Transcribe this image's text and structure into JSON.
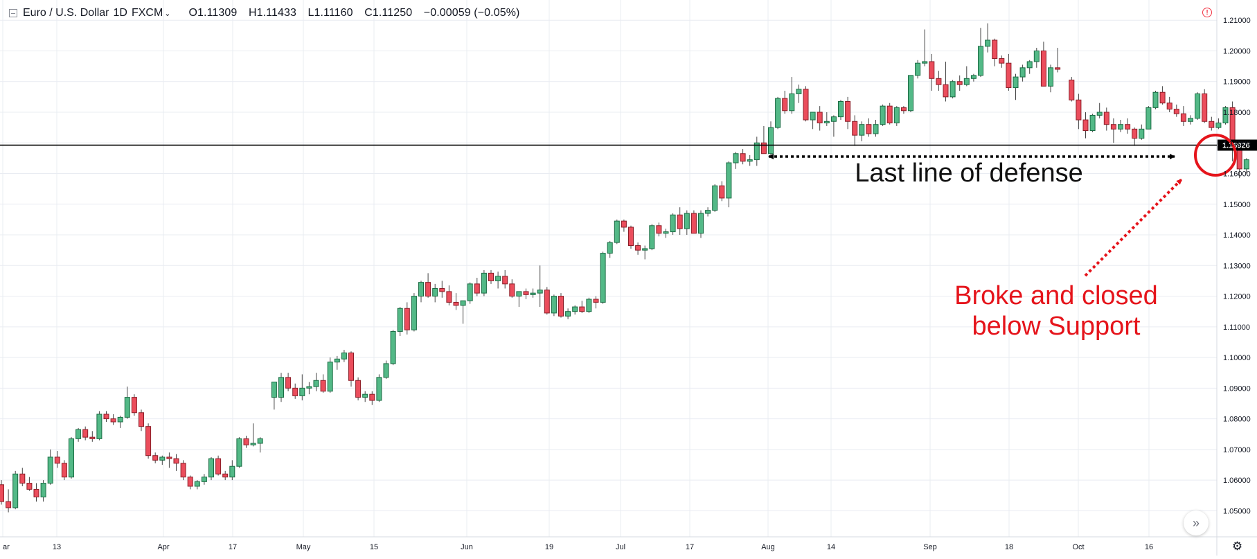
{
  "header": {
    "symbol": "Euro / U.S. Dollar",
    "interval": "1D",
    "exchange": "FXCM",
    "open": "O1.11309",
    "high": "H1.11433",
    "low": "L1.11160",
    "close": "C1.11250",
    "change": "−0.00059 (−0.05%)"
  },
  "colors": {
    "up": "#53b987",
    "up_border": "#1a6b43",
    "down": "#eb4d5c",
    "down_border": "#8b1d27",
    "grid": "#e9ecf2",
    "annotation_red": "#e5141b",
    "support_line": "#000000"
  },
  "chart_data": {
    "type": "candlestick",
    "title": "",
    "y_axis": {
      "ticks": [
        "1.21000",
        "1.20000",
        "1.19000",
        "1.18000",
        "1.17000",
        "1.16000",
        "1.15000",
        "1.14000",
        "1.13000",
        "1.12000",
        "1.11000",
        "1.10000",
        "1.09000",
        "1.08000",
        "1.07000",
        "1.06000",
        "1.05000"
      ],
      "range": [
        1.0415,
        1.2166
      ]
    },
    "x_axis": {
      "ticks": [
        "ar",
        "13",
        "Apr",
        "17",
        "May",
        "15",
        "Jun",
        "19",
        "Jul",
        "17",
        "Aug",
        "14",
        "Sep",
        "18",
        "Oct",
        "16"
      ]
    },
    "support_level": 1.16926,
    "support_label": "1.16926",
    "candles": [
      [
        1.0585,
        1.06,
        1.052,
        1.053
      ],
      [
        1.053,
        1.057,
        1.0495,
        1.051
      ],
      [
        1.051,
        1.063,
        1.0505,
        1.062
      ],
      [
        1.062,
        1.064,
        1.058,
        1.059
      ],
      [
        1.059,
        1.061,
        1.0565,
        1.057
      ],
      [
        1.057,
        1.059,
        1.053,
        1.0545
      ],
      [
        1.0545,
        1.06,
        1.053,
        1.059
      ],
      [
        1.059,
        1.07,
        1.0585,
        1.0675
      ],
      [
        1.0675,
        1.0695,
        1.064,
        1.0655
      ],
      [
        1.0655,
        1.0665,
        1.06,
        1.061
      ],
      [
        1.061,
        1.074,
        1.0605,
        1.0735
      ],
      [
        1.0735,
        1.077,
        1.0725,
        1.0765
      ],
      [
        1.0765,
        1.0775,
        1.073,
        1.074
      ],
      [
        1.074,
        1.076,
        1.0725,
        1.0735
      ],
      [
        1.0735,
        1.0825,
        1.073,
        1.0815
      ],
      [
        1.0815,
        1.0825,
        1.079,
        1.08
      ],
      [
        1.08,
        1.0815,
        1.078,
        1.079
      ],
      [
        1.079,
        1.081,
        1.077,
        1.0805
      ],
      [
        1.0805,
        1.0905,
        1.08,
        1.087
      ],
      [
        1.087,
        1.088,
        1.081,
        1.082
      ],
      [
        1.082,
        1.083,
        1.076,
        1.0775
      ],
      [
        1.0775,
        1.0785,
        1.067,
        1.068
      ],
      [
        1.068,
        1.069,
        1.0655,
        1.0665
      ],
      [
        1.0665,
        1.068,
        1.065,
        1.0675
      ],
      [
        1.0675,
        1.069,
        1.064,
        1.067
      ],
      [
        1.067,
        1.0685,
        1.063,
        1.0655
      ],
      [
        1.0655,
        1.0665,
        1.06,
        1.061
      ],
      [
        1.061,
        1.0615,
        1.057,
        1.058
      ],
      [
        1.058,
        1.06,
        1.057,
        1.0595
      ],
      [
        1.0595,
        1.062,
        1.0585,
        1.061
      ],
      [
        1.061,
        1.0675,
        1.06,
        1.067
      ],
      [
        1.067,
        1.068,
        1.0615,
        1.062
      ],
      [
        1.062,
        1.063,
        1.06,
        1.061
      ],
      [
        1.061,
        1.0665,
        1.06,
        1.0645
      ],
      [
        1.0645,
        1.074,
        1.064,
        1.0735
      ],
      [
        1.0735,
        1.0745,
        1.0705,
        1.0715
      ],
      [
        1.0715,
        1.0785,
        1.071,
        1.072
      ],
      [
        1.072,
        1.074,
        1.069,
        1.0735
      ],
      null,
      [
        1.087,
        1.0905,
        1.083,
        1.092
      ],
      [
        1.087,
        1.095,
        1.0855,
        1.0935
      ],
      [
        1.0935,
        1.095,
        1.089,
        1.09
      ],
      [
        1.09,
        1.0915,
        1.0865,
        1.0875
      ],
      [
        1.0875,
        1.0945,
        1.086,
        1.09
      ],
      [
        1.09,
        1.092,
        1.088,
        1.0905
      ],
      [
        1.0905,
        1.095,
        1.089,
        1.0925
      ],
      [
        1.0925,
        1.0945,
        1.0885,
        1.089
      ],
      [
        1.089,
        1.1,
        1.0885,
        1.0985
      ],
      [
        1.0985,
        1.1005,
        1.096,
        1.0995
      ],
      [
        1.0995,
        1.1025,
        1.0985,
        1.1015
      ],
      [
        1.1015,
        1.102,
        1.0905,
        1.0925
      ],
      [
        1.0925,
        1.0935,
        1.086,
        1.087
      ],
      [
        1.087,
        1.089,
        1.0855,
        1.088
      ],
      [
        1.088,
        1.089,
        1.0845,
        1.086
      ],
      [
        1.086,
        1.0945,
        1.0855,
        1.0935
      ],
      [
        1.0935,
        1.099,
        1.093,
        1.098
      ],
      [
        1.098,
        1.109,
        1.0975,
        1.1085
      ],
      [
        1.1085,
        1.1165,
        1.107,
        1.116
      ],
      [
        1.116,
        1.118,
        1.1075,
        1.109
      ],
      [
        1.109,
        1.121,
        1.1085,
        1.12
      ],
      [
        1.12,
        1.125,
        1.118,
        1.1245
      ],
      [
        1.1245,
        1.1275,
        1.1195,
        1.12
      ],
      [
        1.12,
        1.124,
        1.118,
        1.1225
      ],
      [
        1.1225,
        1.125,
        1.1195,
        1.1215
      ],
      [
        1.1215,
        1.1235,
        1.117,
        1.118
      ],
      [
        1.118,
        1.121,
        1.1155,
        1.117
      ],
      [
        1.117,
        1.1185,
        1.111,
        1.1185
      ],
      [
        1.1185,
        1.1245,
        1.1175,
        1.124
      ],
      [
        1.124,
        1.126,
        1.12,
        1.121
      ],
      [
        1.121,
        1.1285,
        1.12,
        1.1275
      ],
      [
        1.1275,
        1.1285,
        1.124,
        1.125
      ],
      [
        1.125,
        1.128,
        1.1225,
        1.1265
      ],
      [
        1.1265,
        1.1285,
        1.1225,
        1.124
      ],
      [
        1.124,
        1.1255,
        1.1195,
        1.12
      ],
      [
        1.12,
        1.1215,
        1.1165,
        1.1215
      ],
      [
        1.1215,
        1.1225,
        1.119,
        1.1205
      ],
      [
        1.1205,
        1.1225,
        1.1195,
        1.121
      ],
      [
        1.121,
        1.13,
        1.1165,
        1.122
      ],
      [
        1.122,
        1.123,
        1.114,
        1.1145
      ],
      [
        1.1145,
        1.1205,
        1.1135,
        1.12
      ],
      [
        1.12,
        1.121,
        1.113,
        1.1135
      ],
      [
        1.1135,
        1.116,
        1.1125,
        1.115
      ],
      [
        1.115,
        1.117,
        1.114,
        1.1165
      ],
      [
        1.1165,
        1.1185,
        1.1145,
        1.115
      ],
      [
        1.115,
        1.1195,
        1.1145,
        1.119
      ],
      [
        1.119,
        1.12,
        1.116,
        1.118
      ],
      [
        1.118,
        1.1345,
        1.1175,
        1.134
      ],
      [
        1.134,
        1.138,
        1.1325,
        1.1375
      ],
      [
        1.1375,
        1.145,
        1.137,
        1.1445
      ],
      [
        1.1445,
        1.145,
        1.141,
        1.1425
      ],
      [
        1.1425,
        1.143,
        1.1355,
        1.1365
      ],
      [
        1.1365,
        1.1375,
        1.1335,
        1.135
      ],
      [
        1.135,
        1.1365,
        1.132,
        1.1355
      ],
      [
        1.1355,
        1.1435,
        1.135,
        1.143
      ],
      [
        1.143,
        1.144,
        1.1395,
        1.1405
      ],
      [
        1.1405,
        1.142,
        1.139,
        1.141
      ],
      [
        1.141,
        1.147,
        1.14,
        1.1465
      ],
      [
        1.1465,
        1.149,
        1.14,
        1.142
      ],
      [
        1.142,
        1.148,
        1.14,
        1.147
      ],
      [
        1.147,
        1.148,
        1.1405,
        1.1405
      ],
      [
        1.1405,
        1.148,
        1.139,
        1.147
      ],
      [
        1.147,
        1.149,
        1.146,
        1.148
      ],
      [
        1.148,
        1.1565,
        1.1475,
        1.156
      ],
      [
        1.156,
        1.1575,
        1.151,
        1.152
      ],
      [
        1.152,
        1.164,
        1.149,
        1.1635
      ],
      [
        1.1635,
        1.167,
        1.1615,
        1.1665
      ],
      [
        1.1665,
        1.168,
        1.163,
        1.164
      ],
      [
        1.164,
        1.166,
        1.1625,
        1.1645
      ],
      [
        1.1645,
        1.172,
        1.1625,
        1.17
      ],
      [
        1.17,
        1.1755,
        1.1665,
        1.1665
      ],
      [
        1.1665,
        1.177,
        1.166,
        1.175
      ],
      [
        1.175,
        1.185,
        1.1745,
        1.1845
      ],
      [
        1.1845,
        1.187,
        1.1795,
        1.1805
      ],
      [
        1.1805,
        1.1915,
        1.1795,
        1.186
      ],
      [
        1.186,
        1.189,
        1.183,
        1.1875
      ],
      [
        1.1875,
        1.1885,
        1.177,
        1.1775
      ],
      [
        1.1775,
        1.18,
        1.1745,
        1.18
      ],
      [
        1.18,
        1.182,
        1.174,
        1.1765
      ],
      [
        1.1765,
        1.18,
        1.1755,
        1.177
      ],
      [
        1.177,
        1.179,
        1.172,
        1.1785
      ],
      [
        1.1785,
        1.184,
        1.1775,
        1.1835
      ],
      [
        1.1835,
        1.185,
        1.1745,
        1.177
      ],
      [
        1.177,
        1.179,
        1.169,
        1.1725
      ],
      [
        1.1725,
        1.177,
        1.1705,
        1.176
      ],
      [
        1.176,
        1.178,
        1.172,
        1.173
      ],
      [
        1.173,
        1.1775,
        1.172,
        1.176
      ],
      [
        1.176,
        1.1825,
        1.1755,
        1.182
      ],
      [
        1.182,
        1.183,
        1.176,
        1.1765
      ],
      [
        1.1765,
        1.182,
        1.1755,
        1.1815
      ],
      [
        1.1815,
        1.182,
        1.1795,
        1.1805
      ],
      [
        1.1805,
        1.192,
        1.18,
        1.192
      ],
      [
        1.192,
        1.197,
        1.191,
        1.196
      ],
      [
        1.196,
        1.207,
        1.195,
        1.1965
      ],
      [
        1.1965,
        1.199,
        1.187,
        1.191
      ],
      [
        1.191,
        1.1935,
        1.187,
        1.189
      ],
      [
        1.189,
        1.1965,
        1.1835,
        1.185
      ],
      [
        1.185,
        1.1905,
        1.1845,
        1.19
      ],
      [
        1.19,
        1.192,
        1.187,
        1.189
      ],
      [
        1.189,
        1.195,
        1.1885,
        1.191
      ],
      [
        1.191,
        1.1925,
        1.19,
        1.192
      ],
      [
        1.192,
        1.2075,
        1.1915,
        1.2015
      ],
      [
        1.2015,
        1.209,
        1.1995,
        1.2035
      ],
      [
        1.2035,
        1.204,
        1.195,
        1.1975
      ],
      [
        1.1975,
        1.1985,
        1.1945,
        1.196
      ],
      [
        1.196,
        1.199,
        1.187,
        1.188
      ],
      [
        1.188,
        1.1925,
        1.184,
        1.1915
      ],
      [
        1.1915,
        1.1955,
        1.19,
        1.1945
      ],
      [
        1.1945,
        1.197,
        1.1925,
        1.1965
      ],
      [
        1.1965,
        1.201,
        1.1945,
        1.2
      ],
      [
        1.2,
        1.203,
        1.1895,
        1.1885
      ],
      [
        1.1885,
        1.1955,
        1.1865,
        1.1945
      ],
      [
        1.1945,
        1.201,
        1.193,
        1.194
      ],
      null,
      [
        1.1905,
        1.1915,
        1.1835,
        1.184
      ],
      [
        1.184,
        1.186,
        1.1745,
        1.1775
      ],
      [
        1.1775,
        1.18,
        1.1715,
        1.174
      ],
      [
        1.174,
        1.1795,
        1.1735,
        1.179
      ],
      [
        1.179,
        1.183,
        1.178,
        1.18
      ],
      [
        1.18,
        1.1815,
        1.174,
        1.176
      ],
      [
        1.176,
        1.178,
        1.17,
        1.1745
      ],
      [
        1.1745,
        1.1775,
        1.1735,
        1.176
      ],
      [
        1.176,
        1.178,
        1.173,
        1.1745
      ],
      [
        1.1745,
        1.175,
        1.169,
        1.1715
      ],
      [
        1.1715,
        1.176,
        1.171,
        1.1745
      ],
      [
        1.1745,
        1.182,
        1.1745,
        1.1815
      ],
      [
        1.1815,
        1.187,
        1.181,
        1.1865
      ],
      [
        1.1865,
        1.1885,
        1.1825,
        1.183
      ],
      [
        1.183,
        1.185,
        1.18,
        1.181
      ],
      [
        1.181,
        1.1825,
        1.1785,
        1.1795
      ],
      [
        1.1795,
        1.182,
        1.1755,
        1.177
      ],
      [
        1.177,
        1.179,
        1.176,
        1.178
      ],
      [
        1.178,
        1.1865,
        1.1775,
        1.186
      ],
      [
        1.186,
        1.1875,
        1.1765,
        1.177
      ],
      [
        1.177,
        1.1785,
        1.174,
        1.175
      ],
      [
        1.175,
        1.178,
        1.1745,
        1.1765
      ],
      [
        1.1765,
        1.182,
        1.176,
        1.1815
      ],
      [
        1.1815,
        1.1835,
        1.164,
        1.169
      ],
      [
        1.169,
        1.17,
        1.1585,
        1.1615
      ],
      [
        1.1615,
        1.165,
        1.16,
        1.1645
      ]
    ]
  },
  "annotations": {
    "defense_label": "Last line of defense",
    "break_label_line1": "Broke and closed",
    "break_label_line2": "below Support"
  }
}
